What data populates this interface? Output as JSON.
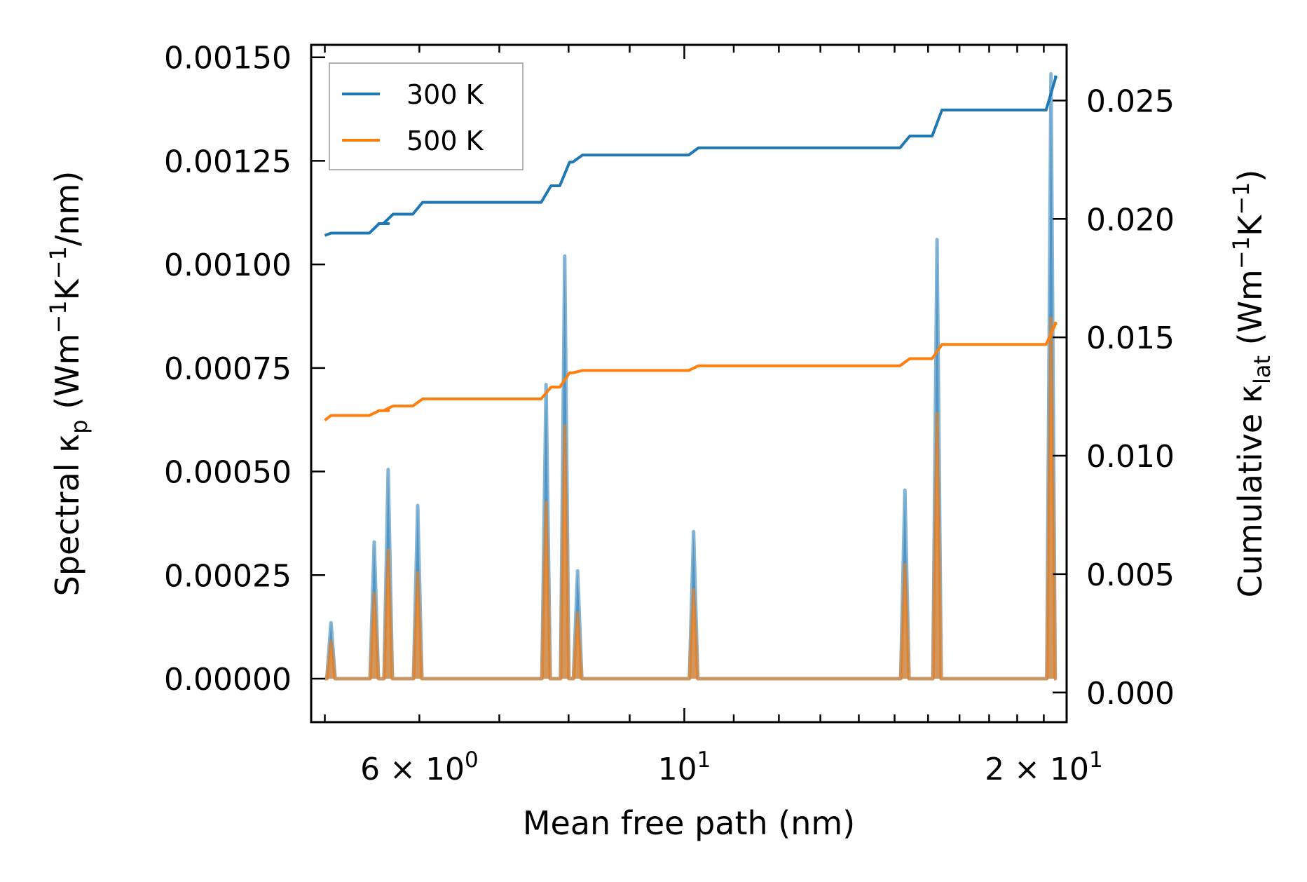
{
  "chart_data": {
    "type": "line",
    "title": "",
    "xlabel": "Mean free path (nm)",
    "ylabel_left": {
      "base": "Spectral κ",
      "sub": "p",
      "units_open": " (Wm",
      "sup1": "−1",
      "mid": "K",
      "sup2": "−1",
      "tail": "/nm)"
    },
    "ylabel_right": {
      "base": "Cumulative κ",
      "sub": "lat",
      "units_open": " (Wm",
      "sup1": "−1",
      "mid": "K",
      "sup2": "−1",
      "tail": ")"
    },
    "xscale": "log",
    "xlim": [
      4.87,
      20.9
    ],
    "ylim_left": [
      -0.000105,
      0.00153
    ],
    "ylim_right": [
      -0.00125,
      0.02735
    ],
    "xticks": [
      {
        "value": 6,
        "base": "6 × 10",
        "exp": "0"
      },
      {
        "value": 10,
        "base": "10",
        "exp": "1"
      },
      {
        "value": 20,
        "base": "2 × 10",
        "exp": "1"
      }
    ],
    "yticks_left": [
      "0.00000",
      "0.00025",
      "0.00050",
      "0.00075",
      "0.00100",
      "0.00125",
      "0.00150"
    ],
    "yticks_left_values": [
      0,
      0.00025,
      0.0005,
      0.00075,
      0.001,
      0.00125,
      0.0015
    ],
    "yticks_right": [
      "0.000",
      "0.005",
      "0.010",
      "0.015",
      "0.020",
      "0.025"
    ],
    "yticks_right_values": [
      0,
      0.005,
      0.01,
      0.015,
      0.02,
      0.025
    ],
    "legend": {
      "position": "top-left",
      "entries": [
        {
          "label": "300 K",
          "color": "#1f77b4"
        },
        {
          "label": "500 K",
          "color": "#ff7f0e"
        }
      ]
    },
    "spectral": {
      "peak_x": [
        5.06,
        5.5,
        5.65,
        5.98,
        7.66,
        7.94,
        8.14,
        10.18,
        15.3,
        16.28,
        20.28
      ],
      "series": [
        {
          "name": "300 K",
          "color": "#1f77b4",
          "values": [
            0.000135,
            0.00033,
            0.000505,
            0.000418,
            0.00071,
            0.00102,
            0.00026,
            0.000355,
            0.000455,
            0.00106,
            0.00146
          ]
        },
        {
          "name": "500 K",
          "color": "#ff7f0e",
          "values": [
            9e-05,
            0.000205,
            0.00031,
            0.000255,
            0.000425,
            0.00061,
            0.000158,
            0.000215,
            0.000275,
            0.00064,
            0.00087
          ]
        }
      ]
    },
    "cumulative": {
      "x": [
        5.0,
        5.06,
        5.5,
        5.6,
        5.65,
        5.98,
        7.66,
        7.94,
        8.14,
        10.18,
        15.3,
        16.28,
        20.28,
        20.4
      ],
      "series": [
        {
          "name": "300 K",
          "color": "#1f77b4",
          "values": [
            0.0193,
            0.0194,
            0.0198,
            0.0198,
            0.0202,
            0.0207,
            0.0214,
            0.0224,
            0.0227,
            0.023,
            0.0235,
            0.0246,
            0.026,
            0.026
          ]
        },
        {
          "name": "500 K",
          "color": "#ff7f0e",
          "values": [
            0.0115,
            0.0117,
            0.0119,
            0.0119,
            0.0121,
            0.0124,
            0.0129,
            0.0135,
            0.0136,
            0.0138,
            0.0141,
            0.0147,
            0.0156,
            0.0156
          ]
        }
      ]
    }
  }
}
